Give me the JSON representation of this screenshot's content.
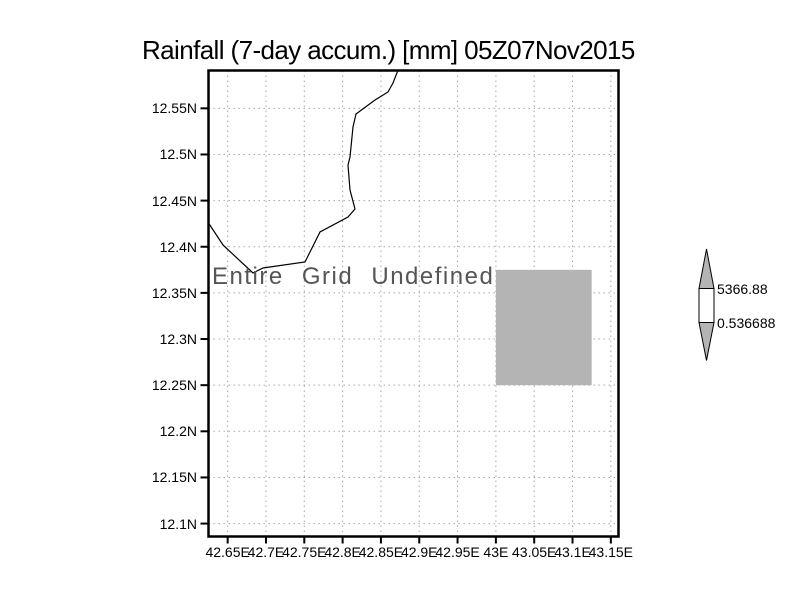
{
  "colors": {
    "background": "#ffffff",
    "frame": "#000000",
    "grid": "#a8a8a8",
    "tick": "#000000",
    "coastline": "#000000",
    "title_text": "#000000",
    "axis_text": "#000000",
    "overlay_text": "#555555"
  },
  "chart_data": {
    "type": "heatmap",
    "title": "Rainfall (7-day accum.) [mm] 05Z07Nov2015",
    "annotation": "Entire Grid Undefined",
    "xlabel": "",
    "ylabel": "",
    "grid": "dotted",
    "legend_position": "right",
    "xlim": [
      42.625,
      43.16
    ],
    "ylim": [
      12.086,
      12.591
    ],
    "x_tick_labels": [
      "42.65E",
      "42.7E",
      "42.75E",
      "42.8E",
      "42.85E",
      "42.9E",
      "42.95E",
      "43E",
      "43.05E",
      "43.1E",
      "43.15E"
    ],
    "x_tick_values": [
      42.65,
      42.7,
      42.75,
      42.8,
      42.85,
      42.9,
      42.95,
      43.0,
      43.05,
      43.1,
      43.15
    ],
    "y_tick_labels": [
      "12.55N",
      "12.5N",
      "12.45N",
      "12.4N",
      "12.35N",
      "12.3N",
      "12.25N",
      "12.2N",
      "12.15N",
      "12.1N"
    ],
    "y_tick_values": [
      12.55,
      12.5,
      12.45,
      12.4,
      12.35,
      12.3,
      12.25,
      12.2,
      12.15,
      12.1
    ],
    "cells": [
      {
        "lon_min": 43.0,
        "lon_max": 43.125,
        "lat_min": 12.25,
        "lat_max": 12.375,
        "color": "#b4b4b4"
      }
    ],
    "coastline": [
      [
        42.625,
        12.4257
      ],
      [
        42.6439,
        12.4019
      ],
      [
        42.6831,
        12.3715
      ],
      [
        42.6961,
        12.377
      ],
      [
        42.7509,
        12.3835
      ],
      [
        42.7705,
        12.416
      ],
      [
        42.807,
        12.4322
      ],
      [
        42.8162,
        12.4409
      ],
      [
        42.8096,
        12.4615
      ],
      [
        42.807,
        12.4886
      ],
      [
        42.8096,
        12.4973
      ],
      [
        42.8135,
        12.5298
      ],
      [
        42.8175,
        12.5439
      ],
      [
        42.8423,
        12.559
      ],
      [
        42.8592,
        12.5677
      ],
      [
        42.8657,
        12.5775
      ],
      [
        42.8722,
        12.591
      ]
    ],
    "colorbar": {
      "max_label": "5366.88",
      "min_label": "0.536688",
      "max": 5366.88,
      "min": 0.536688,
      "in_range_color": "#ffffff",
      "out_of_range_color": "#b4b4b4"
    }
  }
}
